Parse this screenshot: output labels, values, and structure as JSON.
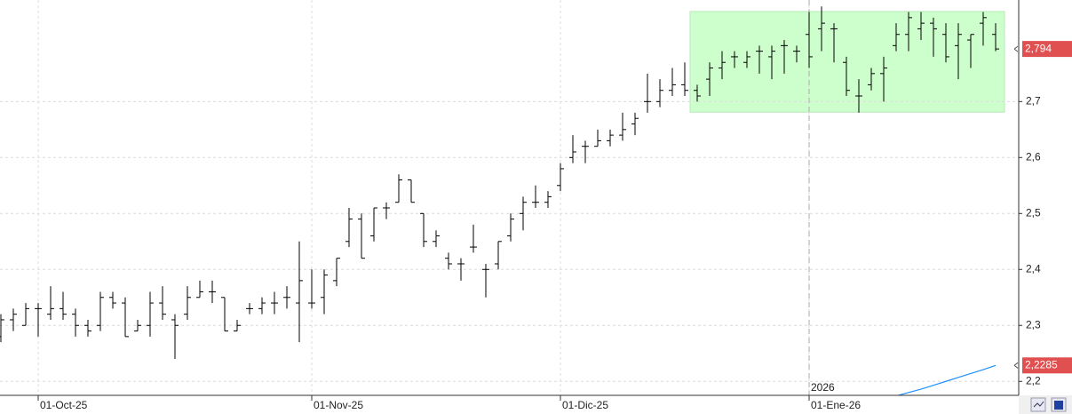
{
  "chart_data": {
    "type": "ohlc",
    "categories": [
      null,
      null,
      null,
      "01-Oct-25",
      null,
      null,
      null,
      null,
      null,
      null,
      null,
      null,
      null,
      null,
      null,
      null,
      null,
      null,
      null,
      null,
      null,
      null,
      null,
      null,
      null,
      "01-Nov-25",
      null,
      null,
      null,
      null,
      null,
      null,
      null,
      null,
      null,
      null,
      null,
      null,
      null,
      null,
      null,
      null,
      null,
      null,
      null,
      "01-Dic-25",
      null,
      null,
      null,
      null,
      null,
      null,
      null,
      null,
      null,
      null,
      null,
      null,
      null,
      null,
      null,
      null,
      null,
      null,
      null,
      "01-Ene-26",
      null,
      null,
      null,
      null,
      null,
      null,
      null,
      null,
      null,
      null,
      null,
      null,
      null,
      null,
      null
    ],
    "series": [
      {
        "type": "ohlc",
        "color": "#000000",
        "last_label": "2,794",
        "open": [
          2.28,
          2.31,
          2.3,
          2.33,
          2.32,
          2.33,
          2.32,
          2.3,
          2.3,
          2.35,
          2.34,
          2.29,
          2.3,
          2.34,
          2.31,
          2.32,
          2.35,
          2.36,
          2.35,
          2.29,
          2.33,
          2.33,
          2.34,
          2.35,
          2.34,
          2.34,
          2.35,
          2.38,
          2.45,
          2.49,
          2.46,
          2.51,
          2.52,
          2.56,
          2.5,
          2.45,
          2.42,
          2.41,
          2.44,
          2.4,
          2.41,
          2.46,
          2.5,
          2.52,
          2.52,
          2.55,
          2.6,
          2.62,
          2.62,
          2.63,
          2.64,
          2.66,
          2.7,
          2.7,
          2.72,
          2.73,
          2.72,
          2.74,
          2.76,
          2.78,
          2.77,
          2.79,
          2.78,
          2.8,
          2.79,
          2.82,
          2.83,
          2.83,
          2.77,
          2.71,
          2.73,
          2.75,
          2.8,
          2.82,
          2.83,
          2.84,
          2.82,
          2.8,
          2.81,
          2.84,
          2.82
        ],
        "high": [
          2.32,
          2.33,
          2.34,
          2.34,
          2.37,
          2.36,
          2.33,
          2.31,
          2.36,
          2.36,
          2.35,
          2.31,
          2.36,
          2.37,
          2.32,
          2.37,
          2.38,
          2.38,
          2.35,
          2.31,
          2.34,
          2.35,
          2.36,
          2.37,
          2.45,
          2.4,
          2.4,
          2.42,
          2.51,
          2.5,
          2.51,
          2.52,
          2.57,
          2.56,
          2.5,
          2.47,
          2.43,
          2.42,
          2.48,
          2.41,
          2.45,
          2.5,
          2.53,
          2.55,
          2.54,
          2.59,
          2.64,
          2.63,
          2.65,
          2.65,
          2.68,
          2.68,
          2.75,
          2.74,
          2.76,
          2.77,
          2.73,
          2.77,
          2.79,
          2.79,
          2.79,
          2.8,
          2.8,
          2.81,
          2.8,
          2.86,
          2.87,
          2.84,
          2.78,
          2.74,
          2.76,
          2.78,
          2.84,
          2.86,
          2.86,
          2.85,
          2.84,
          2.84,
          2.82,
          2.86,
          2.84
        ],
        "low": [
          2.27,
          2.29,
          2.3,
          2.28,
          2.31,
          2.31,
          2.28,
          2.28,
          2.29,
          2.33,
          2.28,
          2.29,
          2.28,
          2.31,
          2.24,
          2.31,
          2.35,
          2.34,
          2.29,
          2.29,
          2.32,
          2.32,
          2.32,
          2.33,
          2.27,
          2.33,
          2.32,
          2.37,
          2.44,
          2.42,
          2.45,
          2.49,
          2.52,
          2.52,
          2.44,
          2.44,
          2.4,
          2.38,
          2.43,
          2.35,
          2.4,
          2.45,
          2.47,
          2.51,
          2.51,
          2.54,
          2.59,
          2.59,
          2.62,
          2.62,
          2.63,
          2.64,
          2.68,
          2.69,
          2.71,
          2.71,
          2.7,
          2.71,
          2.74,
          2.76,
          2.76,
          2.75,
          2.74,
          2.75,
          2.77,
          2.76,
          2.79,
          2.77,
          2.71,
          2.68,
          2.72,
          2.7,
          2.79,
          2.79,
          2.81,
          2.78,
          2.77,
          2.74,
          2.76,
          2.8,
          2.79
        ],
        "close": [
          2.31,
          2.32,
          2.33,
          2.33,
          2.33,
          2.32,
          2.3,
          2.29,
          2.35,
          2.34,
          2.28,
          2.3,
          2.34,
          2.32,
          2.3,
          2.35,
          2.36,
          2.36,
          2.29,
          2.3,
          2.33,
          2.34,
          2.34,
          2.35,
          2.38,
          2.34,
          2.39,
          2.42,
          2.49,
          2.42,
          2.51,
          2.51,
          2.56,
          2.52,
          2.45,
          2.46,
          2.41,
          2.41,
          2.44,
          2.4,
          2.45,
          2.49,
          2.52,
          2.52,
          2.53,
          2.58,
          2.61,
          2.62,
          2.63,
          2.64,
          2.65,
          2.67,
          2.7,
          2.72,
          2.73,
          2.72,
          2.71,
          2.76,
          2.77,
          2.78,
          2.78,
          2.79,
          2.79,
          2.8,
          2.79,
          2.78,
          2.84,
          2.83,
          2.72,
          2.71,
          2.75,
          2.76,
          2.82,
          2.85,
          2.84,
          2.83,
          2.78,
          2.82,
          2.82,
          2.85,
          2.794
        ]
      },
      {
        "type": "line",
        "color": "#1e90ff",
        "last_label": "2,2285",
        "values": [
          null,
          null,
          null,
          null,
          null,
          null,
          null,
          null,
          null,
          null,
          null,
          null,
          null,
          null,
          null,
          null,
          null,
          null,
          null,
          null,
          null,
          null,
          null,
          null,
          null,
          null,
          null,
          null,
          null,
          null,
          null,
          null,
          null,
          null,
          null,
          null,
          null,
          null,
          null,
          null,
          null,
          null,
          null,
          null,
          null,
          null,
          null,
          null,
          null,
          null,
          null,
          null,
          null,
          null,
          null,
          null,
          null,
          null,
          null,
          null,
          null,
          null,
          null,
          null,
          null,
          null,
          null,
          null,
          null,
          null,
          null,
          null,
          2.174,
          2.18,
          2.186,
          2.193,
          2.2,
          2.207,
          2.214,
          2.221,
          2.2285
        ]
      }
    ],
    "ylim": [
      2.175,
      2.8815
    ],
    "yticks": [
      {
        "value": 2.2,
        "label": "2,2"
      },
      {
        "value": 2.3,
        "label": "2,3"
      },
      {
        "value": 2.4,
        "label": "2,4"
      },
      {
        "value": 2.5,
        "label": "2,5"
      },
      {
        "value": 2.6,
        "label": "2,6"
      },
      {
        "value": 2.7,
        "label": "2,7"
      }
    ],
    "grid": true,
    "highlight": {
      "color": "#ccffcc",
      "y": [
        2.681,
        2.861
      ],
      "x": [
        56,
        80
      ]
    },
    "year_label": "2026"
  }
}
